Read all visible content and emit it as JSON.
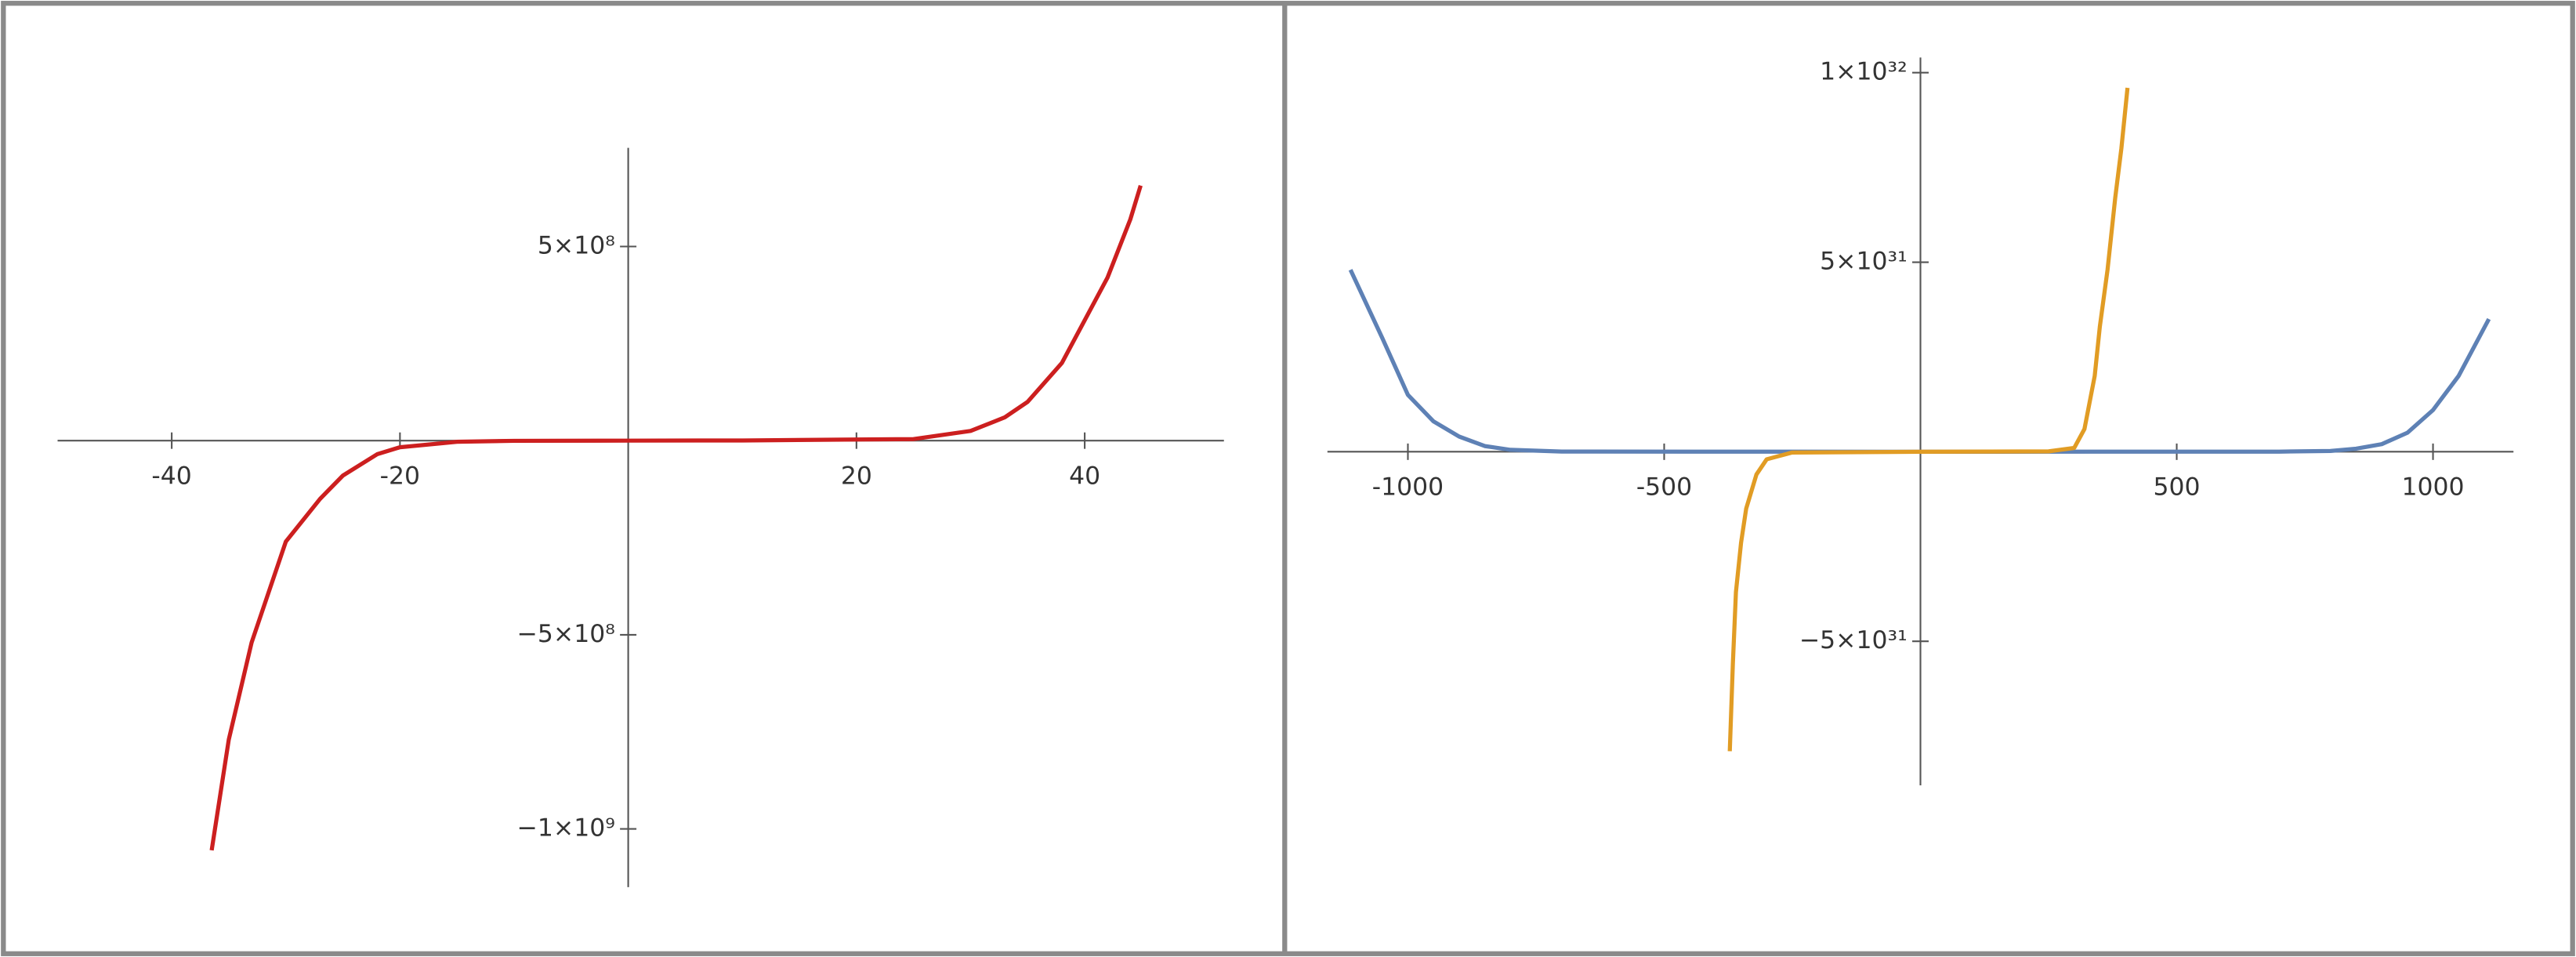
{
  "chart_data": [
    {
      "type": "line",
      "xlim": [
        -50,
        52.2
      ],
      "ylim": [
        -1150000000,
        754000000
      ],
      "xticks": [
        -40,
        -20,
        20,
        40
      ],
      "yticks": [
        {
          "value": 500000000,
          "label": "5×10⁸"
        },
        {
          "value": -500000000,
          "label": "−5×10⁸"
        },
        {
          "value": -1000000000,
          "label": "−1×10⁹"
        }
      ],
      "series": [
        {
          "color": "#cc1f1f",
          "x": [
            -36.5,
            -35,
            -33,
            -30,
            -27,
            -25,
            -22,
            -20,
            -15,
            -10,
            0,
            10,
            20,
            25,
            30,
            33,
            35,
            38,
            40,
            42,
            44,
            44.9
          ],
          "values": [
            -1055000000,
            -770000000,
            -520000000,
            -260000000,
            -150000000,
            -90000000,
            -35000000,
            -17000000,
            -3000000,
            -500000,
            0,
            500000,
            3000000,
            4000000,
            25000000,
            60000000,
            100000000,
            200000000,
            310000000,
            420000000,
            570000000,
            657000000
          ]
        }
      ]
    },
    {
      "type": "line",
      "xlim": [
        -1157,
        1157
      ],
      "ylim": [
        -8.8e+31,
        1.04e+32
      ],
      "xticks": [
        -1000,
        -500,
        500,
        1000
      ],
      "yticks": [
        {
          "value": 1e+32,
          "label": "1×10³²"
        },
        {
          "value": 5e+31,
          "label": "5×10³¹"
        },
        {
          "value": -5e+31,
          "label": "−5×10³¹"
        }
      ],
      "series": [
        {
          "color": "#5e81b5",
          "x": [
            -1112,
            -1050,
            -1000,
            -950,
            -900,
            -850,
            -800,
            -700,
            0,
            700,
            800,
            850,
            900,
            950,
            1000,
            1050,
            1109
          ],
          "values": [
            4.8e+31,
            3e+31,
            1.5e+31,
            8e+30,
            4e+30,
            1.5e+30,
            5e+29,
            5e+28,
            0,
            3e+28,
            2e+29,
            8e+29,
            2e+30,
            5e+30,
            1.1e+31,
            2e+31,
            3.5e+31
          ]
        },
        {
          "color": "#e19c24",
          "x": [
            -372,
            -366,
            -360,
            -350,
            -340,
            -320,
            -300,
            -250,
            0,
            250,
            300,
            320,
            340,
            350,
            365,
            380,
            392,
            404
          ],
          "values": [
            -7.9e+31,
            -5.6e+31,
            -3.7e+31,
            -2.4e+31,
            -1.5e+31,
            -6e+30,
            -2e+30,
            -2e+29,
            0,
            1e+29,
            1e+30,
            6e+30,
            2e+31,
            3.3e+31,
            4.8e+31,
            6.7e+31,
            8e+31,
            9.6e+31
          ]
        }
      ]
    }
  ]
}
